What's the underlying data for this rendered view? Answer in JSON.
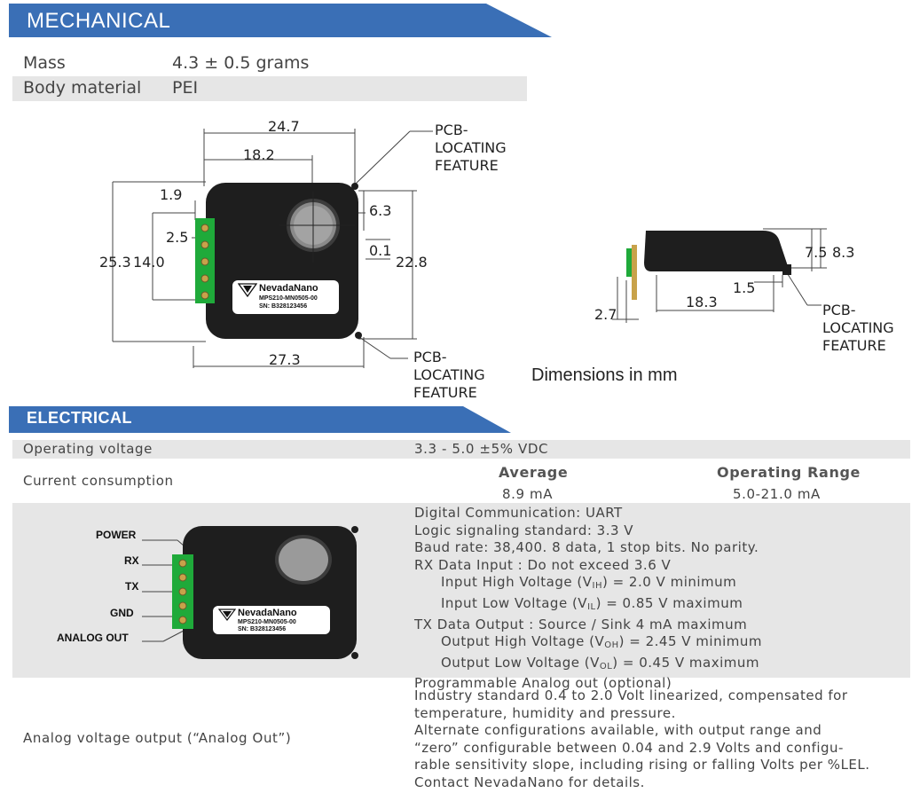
{
  "mechanical": {
    "title": "MECHANICAL",
    "rows": [
      {
        "label": "Mass",
        "value": "4.3 ± 0.5 grams"
      },
      {
        "label": "Body material",
        "value": "PEI"
      }
    ],
    "front_view": {
      "dims": [
        "24.7",
        "18.2",
        "1.9",
        "6.3",
        "2.5",
        "0.1",
        "25.3",
        "14.0",
        "22.8",
        "27.3"
      ],
      "callout_top": "PCB-\nLOCATING\nFEATURE",
      "callout_bottom": "PCB-\nLOCATING\nFEATURE"
    },
    "side_view": {
      "dims": [
        "7.5",
        "8.3",
        "1.5",
        "18.3",
        "2.7"
      ],
      "callout": "PCB-\nLOCATING\nFEATURE"
    },
    "units_note": "Dimensions in mm",
    "device_label": {
      "brand": "NevadaNano",
      "model": "MPS210-MN0505-00",
      "serial": "SN: B328123456"
    }
  },
  "electrical": {
    "title": "ELECTRICAL",
    "operating_voltage": {
      "label": "Operating voltage",
      "value": "3.3 - 5.0 ±5% VDC"
    },
    "current": {
      "label": "Current consumption",
      "col_avg": "Average",
      "col_range": "Operating Range",
      "avg": "8.9 mA",
      "range": "5.0-21.0 mA"
    },
    "pins": [
      "POWER",
      "RX",
      "TX",
      "GND",
      "ANALOG OUT"
    ],
    "comm": {
      "l1": "Digital Communication: UART",
      "l2": "Logic signaling standard: 3.3 V",
      "l3": "Baud rate: 38,400. 8 data, 1 stop bits. No parity.",
      "l4": "RX Data Input : Do not exceed 3.6 V",
      "l5_pre": "Input High Voltage (V",
      "l5_sub": "IH",
      "l5_post": ") = 2.0 V minimum",
      "l6_pre": "Input Low Voltage (V",
      "l6_sub": "IL",
      "l6_post": ") = 0.85 V maximum",
      "l7": "TX Data Output : Source / Sink 4 mA maximum",
      "l8_pre": "Output High Voltage (V",
      "l8_sub": "OH",
      "l8_post": ") = 2.45 V minimum",
      "l9_pre": "Output Low Voltage (V",
      "l9_sub": "OL",
      "l9_post": ") = 0.45 V maximum",
      "l10": "Programmable Analog out (optional)"
    },
    "analog": {
      "label": "Analog voltage output (“Analog Out”)",
      "l1": "Industry standard 0.4 to 2.0 Volt linearized, compensated for",
      "l2": "temperature, humidity and pressure.",
      "l3": "Alternate configurations available, with output range and",
      "l4": "“zero” configurable between 0.04 and 2.9 Volts and configu-",
      "l5": "rable sensitivity slope, including rising or falling Volts per %LEL.",
      "l6": "Contact NevadaNano for details."
    }
  },
  "colors": {
    "banner": "#3a6fb6",
    "row_shade": "#e6e6e6",
    "pcb_green": "#1faa3a",
    "body": "#1e1e1e"
  }
}
